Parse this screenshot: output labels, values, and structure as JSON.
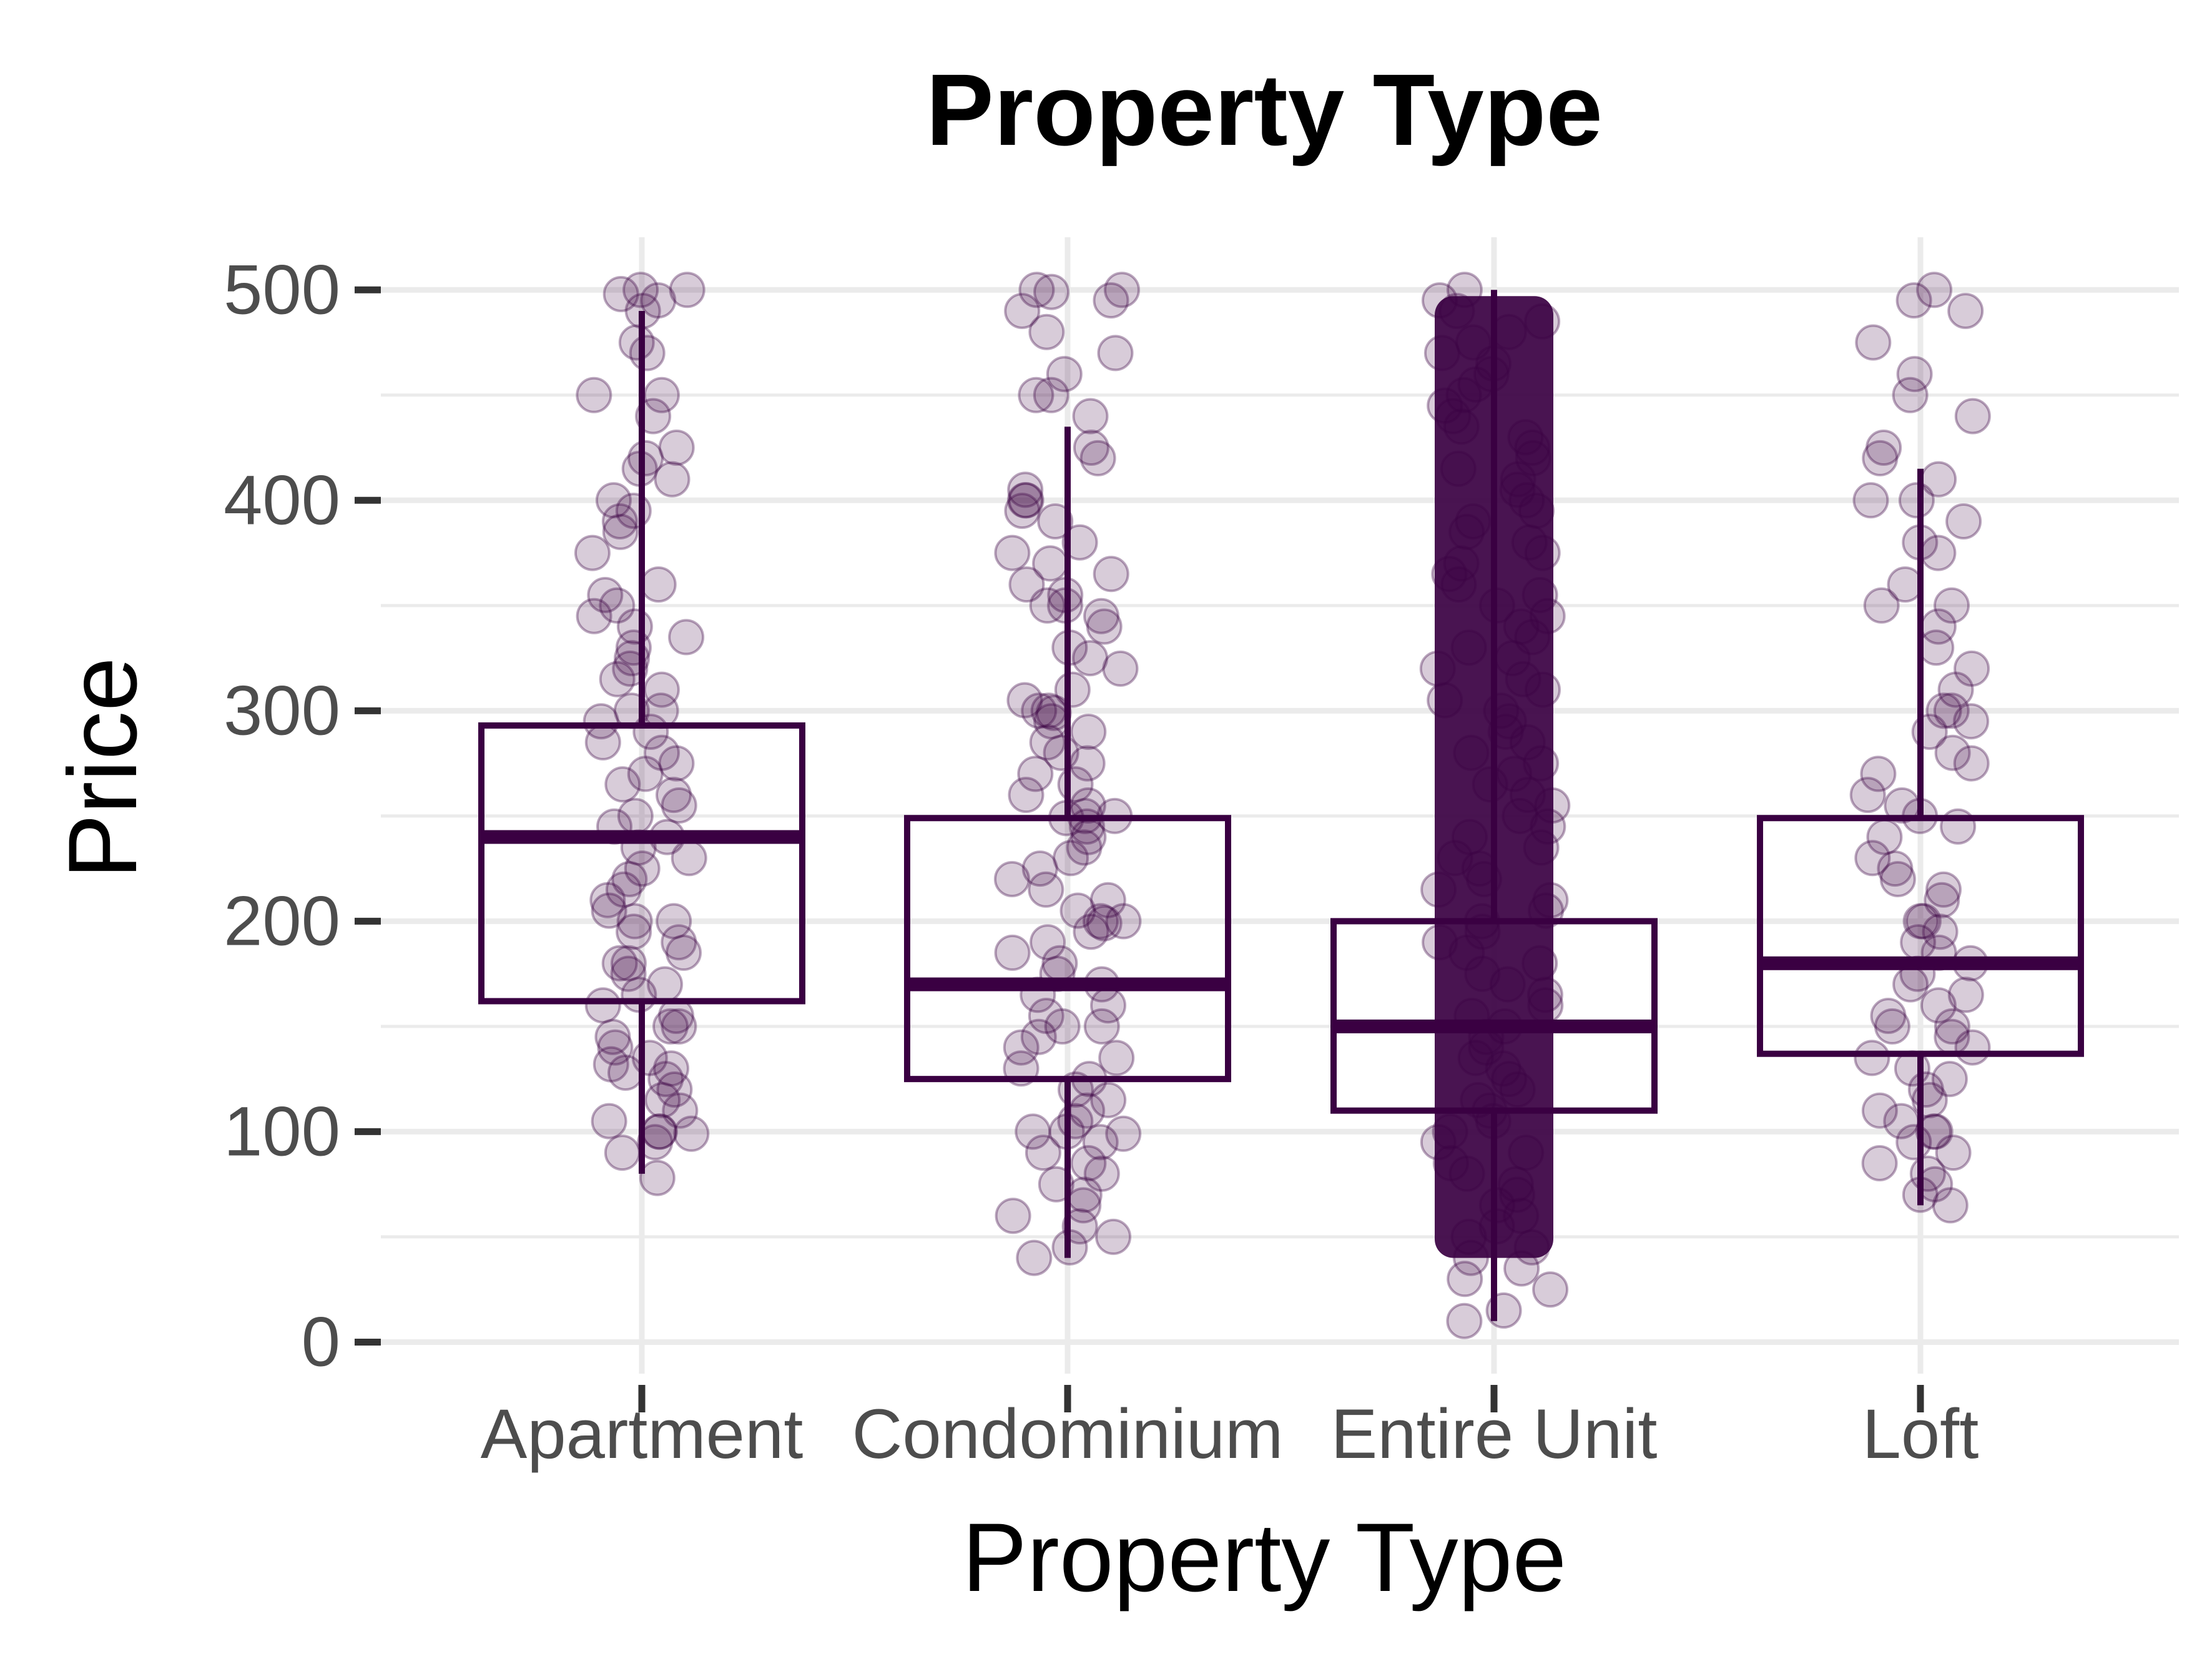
{
  "chart_data": {
    "type": "box",
    "title": "Property Type",
    "xlabel": "Property Type",
    "ylabel": "Price",
    "categories": [
      "Apartment",
      "Condominium",
      "Entire Unit",
      "Loft"
    ],
    "ylim": [
      -15,
      525
    ],
    "yticks": [
      0,
      100,
      200,
      300,
      400,
      500
    ],
    "grid": true,
    "legend": "none",
    "colors": {
      "box": "#3a0042",
      "point": "#3a0042",
      "grid": "#ebebeb",
      "tick": "#333333"
    },
    "boxes": [
      {
        "category": "Apartment",
        "whisker_low": 80,
        "q1": 162,
        "median": 240,
        "q3": 293,
        "whisker_high": 490,
        "outliers": []
      },
      {
        "category": "Condominium",
        "whisker_low": 40,
        "q1": 125,
        "median": 170,
        "q3": 249,
        "whisker_high": 435,
        "outliers": []
      },
      {
        "category": "Entire Unit",
        "whisker_low": 10,
        "q1": 110,
        "median": 150,
        "q3": 200,
        "whisker_high": 500,
        "outliers": []
      },
      {
        "category": "Loft",
        "whisker_low": 65,
        "q1": 137,
        "median": 180,
        "q3": 249,
        "whisker_high": 415,
        "outliers": []
      }
    ],
    "points": {
      "alpha": 0.2,
      "groups": [
        {
          "category": "Apartment",
          "values": [
            78,
            90,
            95,
            99,
            100,
            100,
            105,
            110,
            115,
            120,
            125,
            128,
            130,
            132,
            135,
            140,
            145,
            150,
            150,
            155,
            160,
            165,
            170,
            175,
            180,
            180,
            185,
            190,
            195,
            200,
            200,
            205,
            210,
            215,
            220,
            225,
            230,
            235,
            240,
            245,
            250,
            255,
            260,
            265,
            270,
            275,
            280,
            285,
            290,
            295,
            300,
            300,
            310,
            315,
            320,
            325,
            330,
            335,
            340,
            345,
            350,
            355,
            360,
            375,
            385,
            390,
            395,
            400,
            410,
            415,
            420,
            425,
            440,
            450,
            450,
            470,
            475,
            490,
            495,
            498,
            500,
            500
          ]
        },
        {
          "category": "Condominium",
          "values": [
            40,
            45,
            50,
            55,
            60,
            65,
            70,
            75,
            80,
            85,
            90,
            95,
            99,
            100,
            100,
            105,
            110,
            115,
            120,
            125,
            130,
            135,
            140,
            145,
            150,
            150,
            155,
            160,
            165,
            170,
            175,
            180,
            185,
            190,
            195,
            199,
            200,
            200,
            205,
            210,
            215,
            220,
            225,
            230,
            235,
            240,
            245,
            249,
            250,
            250,
            255,
            260,
            265,
            270,
            275,
            280,
            285,
            290,
            295,
            299,
            300,
            300,
            305,
            310,
            320,
            325,
            330,
            340,
            345,
            350,
            350,
            355,
            360,
            365,
            370,
            375,
            380,
            390,
            395,
            400,
            400,
            405,
            420,
            425,
            440,
            450,
            450,
            460,
            470,
            480,
            490,
            495,
            499,
            500,
            500
          ]
        },
        {
          "category": "Entire Unit",
          "values": [
            10,
            15,
            25,
            30,
            35,
            40,
            45,
            50,
            55,
            60,
            65,
            70,
            75,
            80,
            85,
            90,
            95,
            100,
            105,
            110,
            115,
            120,
            125,
            130,
            135,
            140,
            145,
            150,
            155,
            160,
            165,
            170,
            175,
            180,
            185,
            190,
            195,
            200,
            205,
            210,
            215,
            220,
            225,
            230,
            235,
            240,
            245,
            250,
            255,
            260,
            265,
            270,
            275,
            280,
            285,
            290,
            295,
            300,
            305,
            310,
            315,
            320,
            325,
            330,
            335,
            340,
            345,
            350,
            355,
            360,
            365,
            370,
            375,
            380,
            385,
            390,
            395,
            400,
            405,
            410,
            415,
            420,
            425,
            430,
            435,
            440,
            445,
            450,
            455,
            460,
            465,
            470,
            475,
            480,
            485,
            490,
            495,
            500
          ]
        },
        {
          "category": "Loft",
          "values": [
            65,
            70,
            75,
            80,
            85,
            90,
            95,
            100,
            100,
            105,
            110,
            115,
            120,
            125,
            130,
            135,
            140,
            145,
            150,
            150,
            155,
            160,
            165,
            170,
            175,
            180,
            185,
            190,
            195,
            200,
            200,
            210,
            215,
            220,
            225,
            230,
            240,
            245,
            250,
            255,
            260,
            270,
            275,
            280,
            290,
            295,
            300,
            300,
            310,
            320,
            330,
            340,
            350,
            350,
            360,
            375,
            380,
            390,
            400,
            400,
            410,
            420,
            425,
            440,
            450,
            460,
            475,
            490,
            495,
            500
          ]
        }
      ]
    }
  }
}
